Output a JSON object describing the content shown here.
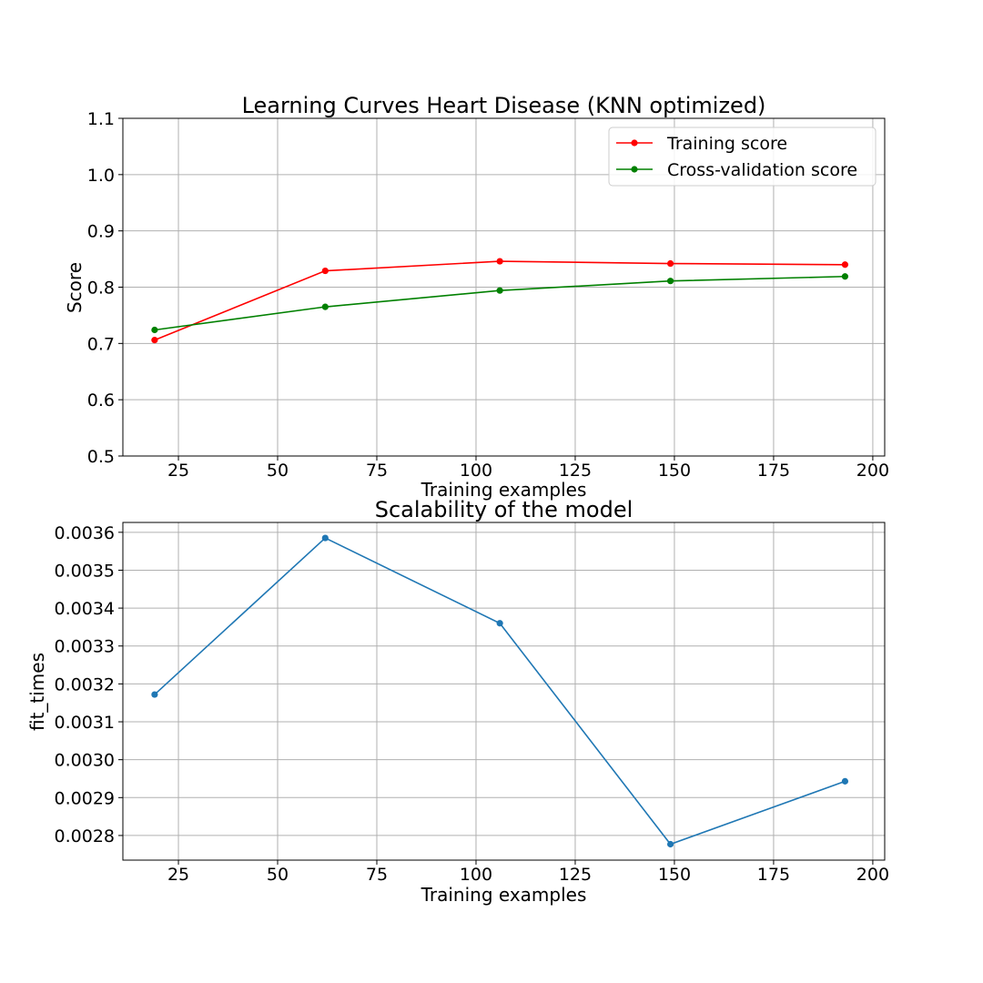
{
  "chart_data": [
    {
      "type": "line",
      "title": "Learning Curves Heart Disease (KNN optimized)",
      "xlabel": "Training examples",
      "ylabel": "Score",
      "xlim": [
        11,
        203
      ],
      "ylim": [
        0.5,
        1.1
      ],
      "xticks": [
        "25",
        "50",
        "75",
        "100",
        "125",
        "150",
        "175",
        "200"
      ],
      "yticks": [
        "0.5",
        "0.6",
        "0.7",
        "0.8",
        "0.9",
        "1.0",
        "1.1"
      ],
      "grid": true,
      "legend": "top-right",
      "x": [
        19,
        62,
        106,
        149,
        193
      ],
      "series": [
        {
          "name": "Training score",
          "color": "#ff0000",
          "values": [
            0.706,
            0.829,
            0.846,
            0.842,
            0.84
          ]
        },
        {
          "name": "Cross-validation score",
          "color": "#008000",
          "values": [
            0.724,
            0.765,
            0.794,
            0.811,
            0.819
          ]
        }
      ]
    },
    {
      "type": "line",
      "title": "Scalability of the model",
      "xlabel": "Training examples",
      "ylabel": "fit_times",
      "xlim": [
        11,
        203
      ],
      "ylim": [
        0.002735,
        0.003626
      ],
      "xticks": [
        "25",
        "50",
        "75",
        "100",
        "125",
        "150",
        "175",
        "200"
      ],
      "yticks": [
        "0.0028",
        "0.0029",
        "0.0030",
        "0.0031",
        "0.0032",
        "0.0033",
        "0.0034",
        "0.0035",
        "0.0036"
      ],
      "grid": true,
      "x": [
        19,
        62,
        106,
        149,
        193
      ],
      "series": [
        {
          "color": "#1f77b4",
          "values": [
            0.003172,
            0.003585,
            0.00336,
            0.002777,
            0.002943
          ]
        }
      ]
    }
  ]
}
